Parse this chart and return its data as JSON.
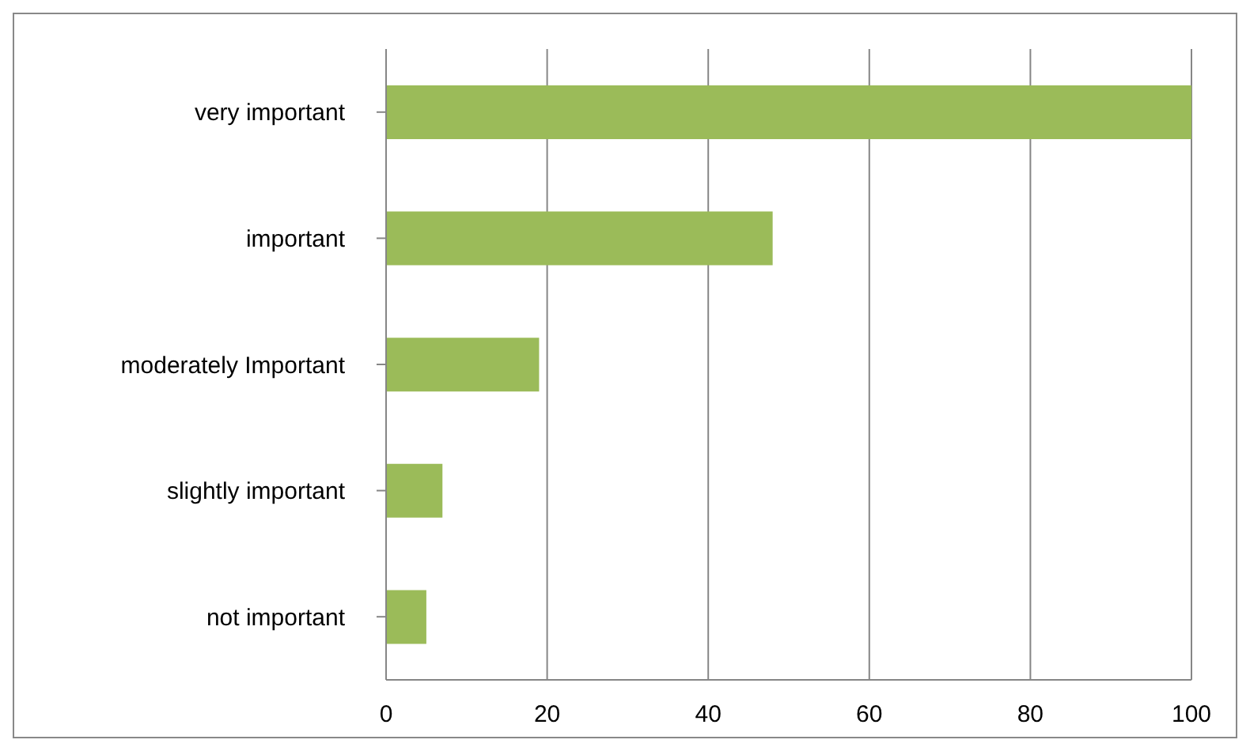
{
  "chart_data": {
    "type": "bar",
    "orientation": "horizontal",
    "categories": [
      "very important",
      "important",
      "moderately Important",
      "slightly important",
      "not important"
    ],
    "series": [
      {
        "color": "#9bbb59",
        "values": [
          100,
          48,
          19,
          7,
          5
        ]
      }
    ],
    "xlim": [
      0,
      100
    ],
    "xticks": [
      0,
      20,
      40,
      60,
      80,
      100
    ],
    "grid": "x",
    "legend": false
  }
}
